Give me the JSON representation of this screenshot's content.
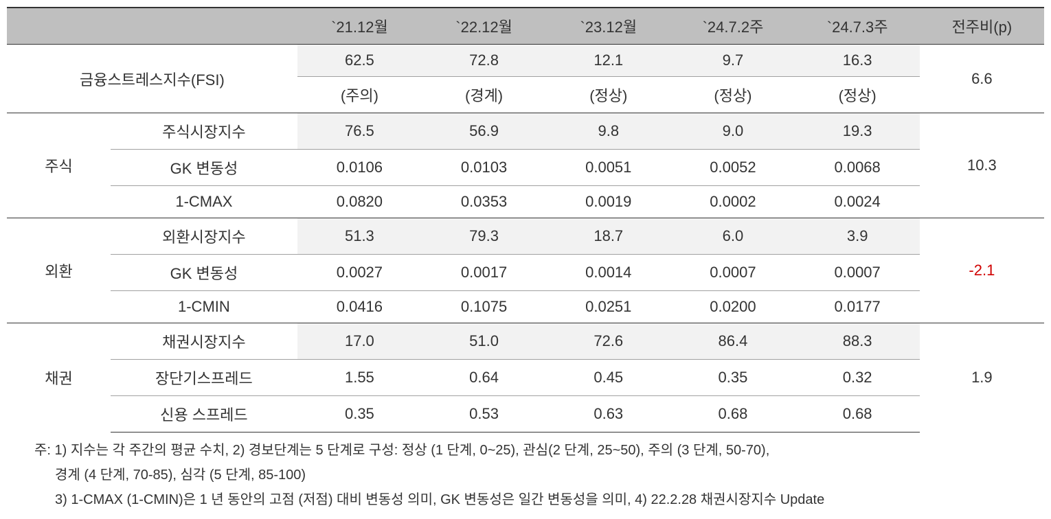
{
  "headers": {
    "blank": "",
    "c1": "`21.12월",
    "c2": "`22.12월",
    "c3": "`23.12월",
    "c4": "`24.7.2주",
    "c5": "`24.7.3주",
    "c6": "전주비(p)"
  },
  "fsi": {
    "label": "금융스트레스지수(FSI)",
    "vals": [
      "62.5",
      "72.8",
      "12.1",
      "9.7",
      "16.3"
    ],
    "status": [
      "(주의)",
      "(경계)",
      "(정상)",
      "(정상)",
      "(정상)"
    ],
    "diff": "6.6"
  },
  "stock": {
    "cat": "주식",
    "rows": [
      {
        "label": "주식시장지수",
        "vals": [
          "76.5",
          "56.9",
          "9.8",
          "9.0",
          "19.3"
        ],
        "hl": true
      },
      {
        "label": "GK 변동성",
        "vals": [
          "0.0106",
          "0.0103",
          "0.0051",
          "0.0052",
          "0.0068"
        ],
        "hl": false
      },
      {
        "label": "1-CMAX",
        "vals": [
          "0.0820",
          "0.0353",
          "0.0019",
          "0.0002",
          "0.0024"
        ],
        "hl": false
      }
    ],
    "diff": "10.3"
  },
  "fx": {
    "cat": "외환",
    "rows": [
      {
        "label": "외환시장지수",
        "vals": [
          "51.3",
          "79.3",
          "18.7",
          "6.0",
          "3.9"
        ],
        "hl": true
      },
      {
        "label": "GK 변동성",
        "vals": [
          "0.0027",
          "0.0017",
          "0.0014",
          "0.0007",
          "0.0007"
        ],
        "hl": false
      },
      {
        "label": "1-CMIN",
        "vals": [
          "0.0416",
          "0.1075",
          "0.0251",
          "0.0200",
          "0.0177"
        ],
        "hl": false
      }
    ],
    "diff": "-2.1",
    "diffNeg": true
  },
  "bond": {
    "cat": "채권",
    "rows": [
      {
        "label": "채권시장지수",
        "vals": [
          "17.0",
          "51.0",
          "72.6",
          "86.4",
          "88.3"
        ],
        "hl": true
      },
      {
        "label": "장단기스프레드",
        "vals": [
          "1.55",
          "0.64",
          "0.45",
          "0.35",
          "0.32"
        ],
        "hl": false
      },
      {
        "label": "신용 스프레드",
        "vals": [
          "0.35",
          "0.53",
          "0.63",
          "0.68",
          "0.68"
        ],
        "hl": false
      }
    ],
    "diff": "1.9"
  },
  "footnotes": {
    "l1": "주: 1) 지수는 각 주간의 평균 수치, 2) 경보단계는 5 단계로 구성: 정상 (1 단계, 0~25), 관심(2 단계, 25~50), 주의 (3 단계, 50-70),",
    "l2": "경계 (4 단계, 70-85), 심각 (5 단계, 85-100)",
    "l3": "3) 1-CMAX (1-CMIN)은 1 년 동안의 고점 (저점) 대비 변동성 의미, GK 변동성은 일간 변동성을 의미, 4) 22.2.28 채권시장지수 Update"
  }
}
